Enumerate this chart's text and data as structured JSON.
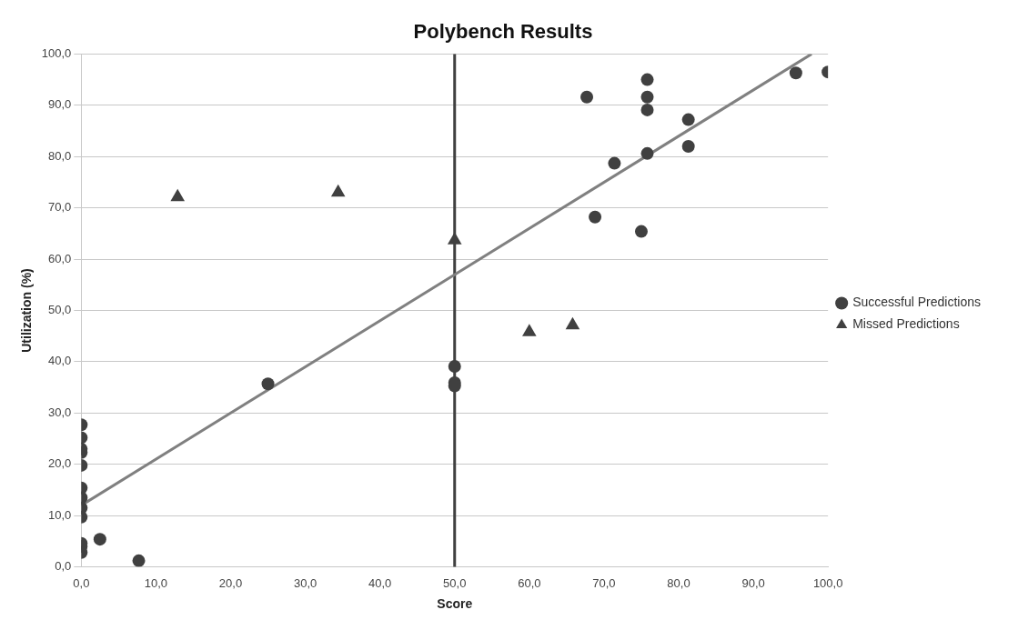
{
  "chart_data": {
    "type": "scatter",
    "title": "Polybench Results",
    "xlabel": "Score",
    "ylabel": "Utilization (%)",
    "xlim": [
      0,
      100
    ],
    "ylim": [
      0,
      100
    ],
    "xticks": [
      {
        "value": 0,
        "label": "0,0"
      },
      {
        "value": 10,
        "label": "10,0"
      },
      {
        "value": 20,
        "label": "20,0"
      },
      {
        "value": 30,
        "label": "30,0"
      },
      {
        "value": 40,
        "label": "40,0"
      },
      {
        "value": 50,
        "label": "50,0"
      },
      {
        "value": 60,
        "label": "60,0"
      },
      {
        "value": 70,
        "label": "70,0"
      },
      {
        "value": 80,
        "label": "80,0"
      },
      {
        "value": 90,
        "label": "90,0"
      },
      {
        "value": 100,
        "label": "100,0"
      }
    ],
    "yticks": [
      {
        "value": 0,
        "label": "0,0"
      },
      {
        "value": 10,
        "label": "10,0"
      },
      {
        "value": 20,
        "label": "20,0"
      },
      {
        "value": 30,
        "label": "30,0"
      },
      {
        "value": 40,
        "label": "40,0"
      },
      {
        "value": 50,
        "label": "50,0"
      },
      {
        "value": 60,
        "label": "60,0"
      },
      {
        "value": 70,
        "label": "70,0"
      },
      {
        "value": 80,
        "label": "80,0"
      },
      {
        "value": 90,
        "label": "90,0"
      },
      {
        "value": 100,
        "label": "100,0"
      }
    ],
    "grid": "y",
    "legend": "right",
    "ref_lines": [
      {
        "axis": "x",
        "value": 50,
        "color": "#404040"
      }
    ],
    "series": [
      {
        "name": "Successful Predictions",
        "color": "#404040",
        "marker": "circle",
        "x": [
          0,
          0,
          0,
          0,
          0,
          0,
          0,
          0,
          0,
          0,
          0,
          0,
          2.5,
          7.7,
          25,
          50,
          50,
          50,
          67.7,
          68.8,
          71.4,
          75,
          75.8,
          75.8,
          75.8,
          75.8,
          81.3,
          81.3,
          95.7,
          100
        ],
        "values": [
          27.7,
          25.2,
          23.0,
          22.3,
          19.8,
          15.4,
          13.5,
          11.5,
          9.7,
          4.6,
          4.0,
          2.8,
          5.4,
          1.2,
          35.7,
          39.1,
          35.9,
          35.3,
          91.6,
          68.2,
          78.7,
          65.4,
          95,
          91.6,
          89.1,
          80.6,
          87.2,
          82.0,
          96.3,
          96.5
        ]
      },
      {
        "name": "Missed Predictions",
        "color": "#404040",
        "marker": "triangle",
        "x": [
          12.9,
          34.4,
          50,
          60,
          65.8
        ],
        "values": [
          72.1,
          73.0,
          63.7,
          45.8,
          47.1
        ]
      },
      {
        "type": "line",
        "color": "#808080",
        "marker": "none",
        "x": [
          0,
          97.8
        ],
        "values": [
          12,
          100
        ]
      }
    ]
  }
}
